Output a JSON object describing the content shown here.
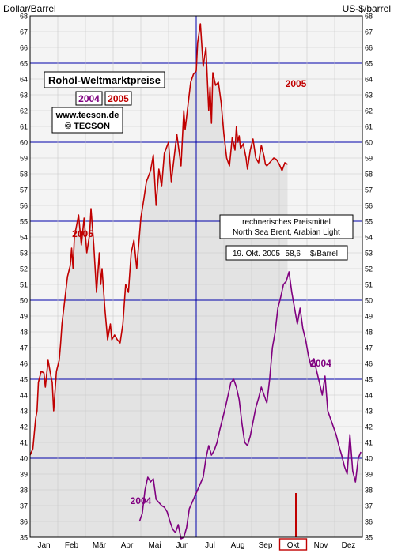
{
  "chart_data": {
    "type": "line",
    "title": "Rohöl-Weltmarktpreise",
    "ylabel_left": "Dollar/Barrel",
    "ylabel_right": "US-$/barrel",
    "ylim": [
      35,
      68
    ],
    "yticks": [
      35,
      36,
      37,
      38,
      39,
      40,
      41,
      42,
      43,
      44,
      45,
      46,
      47,
      48,
      49,
      50,
      51,
      52,
      53,
      54,
      55,
      56,
      57,
      58,
      59,
      60,
      61,
      62,
      63,
      64,
      65,
      66,
      67,
      68
    ],
    "x_axis": {
      "unit": "month",
      "range": [
        0,
        12
      ],
      "highlighted": "Okt"
    },
    "month_labels": [
      "Jan",
      "Feb",
      "Mär",
      "Apr",
      "Mai",
      "Jun",
      "Jul",
      "Aug",
      "Sep",
      "Okt",
      "Nov",
      "Dez"
    ],
    "grid": true,
    "legend": {
      "years": [
        "2004",
        "2005"
      ],
      "source_lines": [
        "www.tecson.de",
        "© TECSON"
      ]
    },
    "colors": {
      "s2005": "#c00000",
      "s2004": "#800080",
      "month_divider": "#0000aa",
      "fill": "#e3e3e3",
      "plot_bg": "#f4f4f4",
      "marker": "#c00000"
    },
    "series": [
      {
        "name": "2005",
        "label": "2005",
        "color": "#c00000",
        "x": [
          0.0,
          0.1,
          0.2,
          0.25,
          0.3,
          0.4,
          0.5,
          0.55,
          0.65,
          0.75,
          0.8,
          0.85,
          0.95,
          1.05,
          1.1,
          1.15,
          1.25,
          1.35,
          1.45,
          1.5,
          1.55,
          1.6,
          1.75,
          1.85,
          1.95,
          2.05,
          2.15,
          2.2,
          2.3,
          2.4,
          2.5,
          2.55,
          2.6,
          2.7,
          2.8,
          2.9,
          2.95,
          3.05,
          3.15,
          3.25,
          3.35,
          3.45,
          3.55,
          3.65,
          3.75,
          3.85,
          4.0,
          4.1,
          4.2,
          4.35,
          4.45,
          4.55,
          4.65,
          4.75,
          4.85,
          5.0,
          5.1,
          5.2,
          5.3,
          5.45,
          5.55,
          5.6,
          5.7,
          5.8,
          5.9,
          6.0,
          6.05,
          6.15,
          6.25,
          6.35,
          6.45,
          6.5,
          6.55,
          6.6,
          6.7,
          6.8,
          6.9,
          7.0,
          7.1,
          7.2,
          7.3,
          7.4,
          7.45,
          7.5,
          7.55,
          7.6,
          7.7,
          7.8,
          7.85,
          7.95,
          8.05,
          8.15,
          8.25,
          8.35,
          8.45,
          8.5,
          8.55,
          8.6,
          8.7,
          8.8,
          8.9,
          9.0,
          9.1,
          9.2,
          9.3
        ],
        "y": [
          40.2,
          40.6,
          42.5,
          43.0,
          44.8,
          45.5,
          45.4,
          44.5,
          46.2,
          45.2,
          44.8,
          43.0,
          45.5,
          46.2,
          47.2,
          48.5,
          50.0,
          51.5,
          52.2,
          53.3,
          52.0,
          54.0,
          55.4,
          53.5,
          55.2,
          53.0,
          54.2,
          55.8,
          53.5,
          50.5,
          53.0,
          51.0,
          52.0,
          49.5,
          47.5,
          48.5,
          47.5,
          47.8,
          47.5,
          47.3,
          48.5,
          51.0,
          50.5,
          53.0,
          53.8,
          52.0,
          55.2,
          56.3,
          57.5,
          58.2,
          59.2,
          56.0,
          58.3,
          57.2,
          59.3,
          60.0,
          57.5,
          59.0,
          60.5,
          58.5,
          62.0,
          60.8,
          62.3,
          63.8,
          64.3,
          64.5,
          66.3,
          67.5,
          64.8,
          66.0,
          62.0,
          63.5,
          61.2,
          64.4,
          63.6,
          63.8,
          62.5,
          60.5,
          59.0,
          58.5,
          60.3,
          59.5,
          61.0,
          60.0,
          60.4,
          59.6,
          59.9,
          59.0,
          58.3,
          59.5,
          60.2,
          59.0,
          58.7,
          59.8,
          59.1,
          58.6,
          58.5,
          58.6,
          58.8,
          59.0,
          58.9,
          58.6,
          58.2,
          58.7,
          58.6
        ]
      },
      {
        "name": "2004",
        "label": "2004",
        "color": "#800080",
        "x": [
          3.95,
          4.05,
          4.15,
          4.25,
          4.35,
          4.45,
          4.55,
          4.65,
          4.75,
          4.85,
          4.95,
          5.05,
          5.15,
          5.25,
          5.35,
          5.45,
          5.55,
          5.65,
          5.75,
          5.85,
          5.95,
          6.05,
          6.15,
          6.25,
          6.35,
          6.45,
          6.55,
          6.65,
          6.75,
          6.85,
          6.95,
          7.05,
          7.15,
          7.25,
          7.35,
          7.45,
          7.55,
          7.65,
          7.75,
          7.85,
          7.95,
          8.05,
          8.15,
          8.25,
          8.35,
          8.45,
          8.55,
          8.65,
          8.75,
          8.85,
          8.95,
          9.05,
          9.15,
          9.25,
          9.35,
          9.45,
          9.55,
          9.65,
          9.75,
          9.85,
          9.95,
          10.05,
          10.15,
          10.25,
          10.35,
          10.45,
          10.55,
          10.65,
          10.75,
          10.85,
          10.95,
          11.05,
          11.15,
          11.25,
          11.35,
          11.45,
          11.55,
          11.65,
          11.75,
          11.85,
          11.95
        ],
        "y": [
          36.0,
          36.5,
          38.0,
          38.8,
          38.5,
          38.7,
          37.4,
          37.2,
          37.0,
          36.9,
          36.6,
          36.0,
          35.5,
          35.3,
          35.8,
          34.9,
          35.0,
          35.6,
          36.8,
          37.2,
          37.6,
          38.0,
          38.4,
          38.8,
          40.0,
          40.8,
          40.2,
          40.5,
          41.0,
          41.8,
          42.5,
          43.2,
          44.0,
          44.8,
          45.0,
          44.5,
          43.7,
          42.2,
          41.0,
          40.8,
          41.4,
          42.3,
          43.2,
          43.8,
          44.5,
          44.0,
          43.5,
          45.0,
          47.0,
          48.0,
          49.5,
          50.2,
          51.0,
          51.2,
          51.8,
          50.5,
          49.5,
          48.5,
          49.5,
          48.2,
          47.5,
          46.5,
          45.8,
          46.3,
          45.5,
          44.8,
          44.0,
          45.2,
          43.0,
          42.5,
          42.0,
          41.5,
          40.8,
          40.2,
          39.5,
          39.0,
          41.5,
          39.2,
          38.5,
          40.0,
          40.4
        ]
      }
    ],
    "annotations": [
      {
        "text": "2005",
        "x": 1.9,
        "y": 54.0
      },
      {
        "text": "2004",
        "x": 4.0,
        "y": 37.1
      },
      {
        "text": "2005",
        "x": 9.6,
        "y": 63.5
      },
      {
        "text": "2004",
        "x": 10.5,
        "y": 45.8
      }
    ],
    "info_box": {
      "line1": "rechnerisches Preismittel",
      "line2": "North Sea Brent, Arabian Light"
    },
    "current_price": {
      "date": "19. Okt. 2005",
      "value": "58,6",
      "unit": "$/Barrel"
    },
    "marker": {
      "x": 9.6,
      "y_from": 35.0,
      "y_to": 37.8
    }
  }
}
